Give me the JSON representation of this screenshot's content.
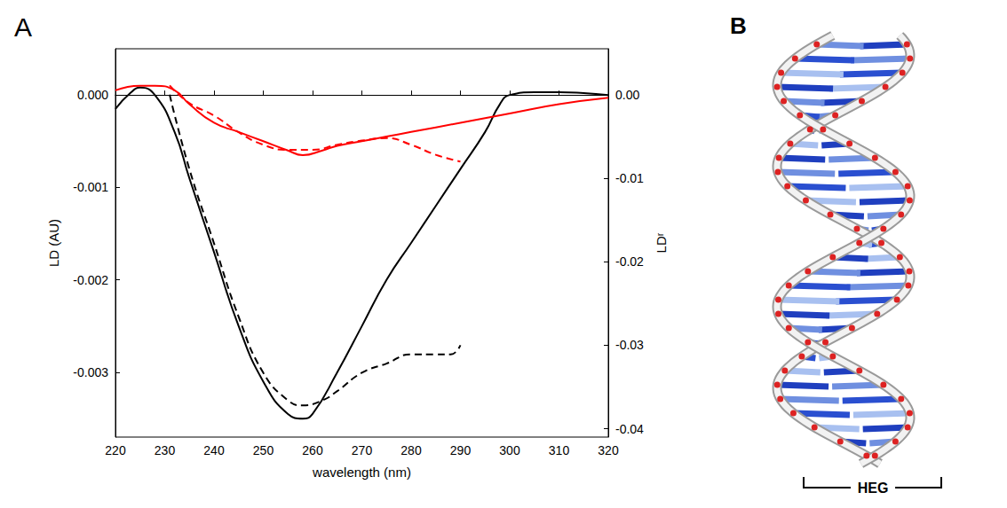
{
  "chart_data": {
    "type": "line",
    "panel_label": "A",
    "xlabel": "wavelength (nm)",
    "ylabel": "LD (AU)",
    "y2label": "LDʳ",
    "xlim": [
      220,
      320
    ],
    "xticks": [
      220,
      230,
      240,
      250,
      260,
      270,
      280,
      290,
      300,
      310,
      320
    ],
    "ylim": [
      -0.0037,
      0.0005
    ],
    "yticks": [
      {
        "value": 0,
        "label": "0.000"
      },
      -0.001,
      -0.002,
      -0.003
    ],
    "y2lim": [
      -0.041,
      0.0055
    ],
    "y2ticks": [
      {
        "value": 0,
        "label": "0.00"
      },
      -0.01,
      -0.02,
      -0.03,
      -0.04
    ],
    "grid": false,
    "series": [
      {
        "color": "#000000",
        "line_style": "solid",
        "axis": "y",
        "x": [
          220,
          223,
          225,
          228,
          232,
          235,
          240,
          245,
          250,
          255,
          258,
          260,
          265,
          270,
          275,
          280,
          285,
          290,
          295,
          298,
          300,
          305,
          310,
          315,
          320
        ],
        "values": [
          -0.00015,
          2e-05,
          8e-05,
          0.0,
          -0.0004,
          -0.0009,
          -0.0017,
          -0.0025,
          -0.0031,
          -0.00345,
          -0.0035,
          -0.00345,
          -0.003,
          -0.0025,
          -0.002,
          -0.0016,
          -0.0012,
          -0.0008,
          -0.0004,
          -0.0001,
          0.0,
          3e-05,
          3e-05,
          2e-05,
          0.0
        ]
      },
      {
        "color": "#000000",
        "line_style": "dashed",
        "axis": "y2",
        "x": [
          231,
          235,
          240,
          245,
          250,
          255,
          258,
          262,
          265,
          270,
          275,
          280,
          285,
          288,
          290
        ],
        "values": [
          0.0,
          -0.0089,
          -0.0178,
          -0.0266,
          -0.0333,
          -0.0366,
          -0.0372,
          -0.0366,
          -0.0355,
          -0.0333,
          -0.0322,
          -0.0311,
          -0.0311,
          -0.0311,
          -0.03
        ]
      },
      {
        "color": "#ff0000",
        "line_style": "solid",
        "axis": "y",
        "x": [
          220,
          225,
          228,
          232,
          235,
          240,
          245,
          250,
          255,
          258,
          262,
          265,
          270,
          275,
          280,
          290,
          300,
          310,
          320
        ],
        "values": [
          5e-05,
          0.0001,
          0.0001,
          5e-05,
          -0.0001,
          -0.0003,
          -0.0004,
          -0.0005,
          -0.0006,
          -0.00065,
          -0.0006,
          -0.00055,
          -0.0005,
          -0.00045,
          -0.0004,
          -0.0003,
          -0.0002,
          -0.0001,
          -3e-05
        ]
      },
      {
        "color": "#ff0000",
        "line_style": "dashed",
        "axis": "y2",
        "x": [
          231,
          235,
          240,
          245,
          250,
          255,
          260,
          265,
          270,
          275,
          280,
          285,
          290
        ],
        "values": [
          0.0011,
          -0.001,
          -0.0025,
          -0.0045,
          -0.006,
          -0.0066,
          -0.0066,
          -0.006,
          -0.0055,
          -0.0052,
          -0.006,
          -0.0072,
          -0.008
        ]
      }
    ]
  },
  "diagram": {
    "panel_label": "B",
    "annotation": "HEG"
  }
}
